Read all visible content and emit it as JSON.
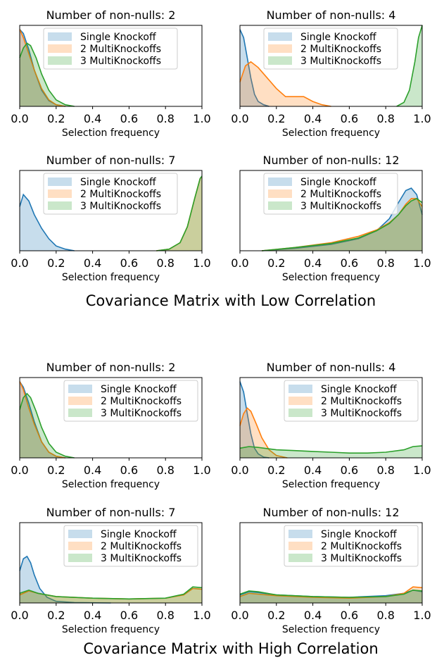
{
  "colors": {
    "single": "#1f77b4",
    "two": "#ff7f0e",
    "three": "#2ca02c"
  },
  "sections": [
    {
      "caption": "Covariance Matrix with Low Correlation"
    },
    {
      "caption": "Covariance Matrix with High Correlation"
    }
  ],
  "chart_data": [
    {
      "type": "area",
      "title": "Number of non-nulls: 2",
      "xlabel": "Selection frequency",
      "ylabel": "",
      "xlim": [
        0,
        1
      ],
      "x_ticks": [
        "0.0",
        "0.2",
        "0.4",
        "0.6",
        "0.8",
        "1.0"
      ],
      "legend": "upper-middle",
      "series": [
        {
          "name": "Single Knockoff",
          "x": [
            0,
            0.02,
            0.05,
            0.08,
            0.12,
            0.16,
            0.2,
            0.25
          ],
          "y": [
            0.95,
            0.9,
            0.7,
            0.45,
            0.2,
            0.07,
            0.02,
            0
          ]
        },
        {
          "name": "2 MultiKnockoffs",
          "x": [
            0,
            0.02,
            0.05,
            0.08,
            0.12,
            0.16,
            0.2,
            0.25
          ],
          "y": [
            0.95,
            0.85,
            0.65,
            0.45,
            0.22,
            0.08,
            0.02,
            0
          ]
        },
        {
          "name": "3 MultiKnockoffs",
          "x": [
            0,
            0.02,
            0.04,
            0.06,
            0.09,
            0.12,
            0.16,
            0.2,
            0.25,
            0.3
          ],
          "y": [
            0.6,
            0.72,
            0.78,
            0.75,
            0.6,
            0.4,
            0.2,
            0.08,
            0.02,
            0
          ]
        }
      ]
    },
    {
      "type": "area",
      "title": "Number of non-nulls: 4",
      "xlabel": "Selection frequency",
      "ylabel": "",
      "xlim": [
        0,
        1
      ],
      "x_ticks": [
        "0.0",
        "0.2",
        "0.4",
        "0.6",
        "0.8",
        "1.0"
      ],
      "legend": "upper-middle",
      "series": [
        {
          "name": "Single Knockoff",
          "x": [
            0,
            0.02,
            0.04,
            0.06,
            0.08,
            0.1,
            0.13,
            0.16
          ],
          "y": [
            0.95,
            0.85,
            0.6,
            0.35,
            0.15,
            0.06,
            0.02,
            0
          ]
        },
        {
          "name": "2 MultiKnockoffs",
          "x": [
            0,
            0.03,
            0.06,
            0.1,
            0.15,
            0.2,
            0.25,
            0.3,
            0.35,
            0.4,
            0.45,
            0.5
          ],
          "y": [
            0.3,
            0.5,
            0.55,
            0.48,
            0.35,
            0.22,
            0.12,
            0.12,
            0.12,
            0.06,
            0.02,
            0
          ]
        },
        {
          "name": "3 MultiKnockoffs",
          "x": [
            0.86,
            0.9,
            0.93,
            0.96,
            0.98,
            1.0
          ],
          "y": [
            0,
            0.05,
            0.2,
            0.55,
            0.85,
            1.0
          ]
        }
      ]
    },
    {
      "type": "area",
      "title": "Number of non-nulls: 7",
      "xlabel": "Selection frequency",
      "ylabel": "",
      "xlim": [
        0,
        1
      ],
      "x_ticks": [
        "0.0",
        "0.2",
        "0.4",
        "0.6",
        "0.8",
        "1.0"
      ],
      "legend": "upper-middle",
      "series": [
        {
          "name": "Single Knockoff",
          "x": [
            0,
            0.02,
            0.05,
            0.08,
            0.12,
            0.16,
            0.2,
            0.25,
            0.3
          ],
          "y": [
            0.55,
            0.7,
            0.62,
            0.45,
            0.28,
            0.15,
            0.06,
            0.02,
            0
          ]
        },
        {
          "name": "2 MultiKnockoffs",
          "x": [
            0.75,
            0.82,
            0.88,
            0.92,
            0.96,
            0.99,
            1.0
          ],
          "y": [
            0,
            0.02,
            0.1,
            0.3,
            0.65,
            0.9,
            0.92
          ]
        },
        {
          "name": "3 MultiKnockoffs",
          "x": [
            0.75,
            0.82,
            0.88,
            0.92,
            0.96,
            0.99,
            1.0
          ],
          "y": [
            0,
            0.02,
            0.1,
            0.3,
            0.65,
            0.9,
            0.93
          ]
        }
      ]
    },
    {
      "type": "area",
      "title": "Number of non-nulls: 12",
      "xlabel": "Selection frequency",
      "ylabel": "",
      "xlim": [
        0,
        1
      ],
      "x_ticks": [
        "0.0",
        "0.2",
        "0.4",
        "0.6",
        "0.8",
        "1.0"
      ],
      "legend": "upper-middle",
      "series": [
        {
          "name": "Single Knockoff",
          "x": [
            0.12,
            0.3,
            0.5,
            0.65,
            0.75,
            0.82,
            0.87,
            0.91,
            0.94,
            0.97,
            1.0
          ],
          "y": [
            0,
            0.03,
            0.08,
            0.15,
            0.25,
            0.4,
            0.6,
            0.75,
            0.78,
            0.7,
            0.45
          ]
        },
        {
          "name": "2 MultiKnockoffs",
          "x": [
            0.12,
            0.3,
            0.5,
            0.65,
            0.75,
            0.82,
            0.87,
            0.91,
            0.94,
            0.97,
            1.0
          ],
          "y": [
            0,
            0.04,
            0.1,
            0.18,
            0.26,
            0.35,
            0.45,
            0.58,
            0.65,
            0.65,
            0.55
          ]
        },
        {
          "name": "3 MultiKnockoffs",
          "x": [
            0.12,
            0.3,
            0.5,
            0.65,
            0.75,
            0.82,
            0.87,
            0.91,
            0.94,
            0.97,
            1.0
          ],
          "y": [
            0,
            0.04,
            0.09,
            0.16,
            0.25,
            0.34,
            0.45,
            0.56,
            0.62,
            0.65,
            0.6
          ]
        }
      ]
    },
    {
      "type": "area",
      "title": "Number of non-nulls: 2",
      "xlabel": "Selection frequency",
      "ylabel": "",
      "xlim": [
        0,
        1
      ],
      "x_ticks": [
        "0.0",
        "0.2",
        "0.4",
        "0.6",
        "0.8",
        "1.0"
      ],
      "legend": "upper-right",
      "series": [
        {
          "name": "Single Knockoff",
          "x": [
            0,
            0.02,
            0.05,
            0.08,
            0.12,
            0.16,
            0.2,
            0.25
          ],
          "y": [
            0.95,
            0.88,
            0.68,
            0.45,
            0.2,
            0.07,
            0.02,
            0
          ]
        },
        {
          "name": "2 MultiKnockoffs",
          "x": [
            0,
            0.02,
            0.05,
            0.08,
            0.12,
            0.16,
            0.2,
            0.25
          ],
          "y": [
            0.95,
            0.85,
            0.62,
            0.42,
            0.2,
            0.07,
            0.02,
            0
          ]
        },
        {
          "name": "3 MultiKnockoffs",
          "x": [
            0,
            0.02,
            0.04,
            0.06,
            0.09,
            0.12,
            0.16,
            0.2,
            0.25,
            0.3
          ],
          "y": [
            0.6,
            0.75,
            0.8,
            0.75,
            0.58,
            0.38,
            0.18,
            0.07,
            0.02,
            0
          ]
        }
      ]
    },
    {
      "type": "area",
      "title": "Number of non-nulls: 4",
      "xlabel": "Selection frequency",
      "ylabel": "",
      "xlim": [
        0,
        1
      ],
      "x_ticks": [
        "0.0",
        "0.2",
        "0.4",
        "0.6",
        "0.8",
        "1.0"
      ],
      "legend": "upper-right",
      "series": [
        {
          "name": "Single Knockoff",
          "x": [
            0,
            0.02,
            0.04,
            0.06,
            0.08,
            0.1,
            0.13,
            0.16
          ],
          "y": [
            0.95,
            0.82,
            0.55,
            0.3,
            0.12,
            0.05,
            0.01,
            0
          ]
        },
        {
          "name": "2 MultiKnockoffs",
          "x": [
            0,
            0.02,
            0.04,
            0.06,
            0.09,
            0.12,
            0.16,
            0.2,
            0.26
          ],
          "y": [
            0.4,
            0.55,
            0.62,
            0.58,
            0.42,
            0.25,
            0.1,
            0.03,
            0
          ]
        },
        {
          "name": "3 MultiKnockoffs",
          "x": [
            0,
            0.05,
            0.1,
            0.2,
            0.3,
            0.4,
            0.5,
            0.6,
            0.7,
            0.8,
            0.9,
            0.95,
            1.0
          ],
          "y": [
            0.12,
            0.14,
            0.13,
            0.1,
            0.09,
            0.08,
            0.07,
            0.06,
            0.06,
            0.07,
            0.1,
            0.14,
            0.15
          ]
        }
      ]
    },
    {
      "type": "area",
      "title": "Number of non-nulls: 7",
      "xlabel": "Selection frequency",
      "ylabel": "",
      "xlim": [
        0,
        1
      ],
      "x_ticks": [
        "0.0",
        "0.2",
        "0.4",
        "0.6",
        "0.8",
        "1.0"
      ],
      "legend": "upper-right",
      "series": [
        {
          "name": "Single Knockoff",
          "x": [
            0,
            0.02,
            0.04,
            0.06,
            0.08,
            0.11,
            0.15,
            0.2,
            0.3,
            0.5
          ],
          "y": [
            0.4,
            0.55,
            0.58,
            0.5,
            0.35,
            0.18,
            0.07,
            0.02,
            0.005,
            0
          ]
        },
        {
          "name": "2 MultiKnockoffs",
          "x": [
            0,
            0.05,
            0.1,
            0.2,
            0.4,
            0.6,
            0.8,
            0.9,
            0.95,
            1.0
          ],
          "y": [
            0.1,
            0.15,
            0.12,
            0.08,
            0.06,
            0.05,
            0.06,
            0.1,
            0.18,
            0.17
          ]
        },
        {
          "name": "3 MultiKnockoffs",
          "x": [
            0,
            0.05,
            0.1,
            0.2,
            0.4,
            0.6,
            0.8,
            0.9,
            0.95,
            1.0
          ],
          "y": [
            0.12,
            0.16,
            0.12,
            0.08,
            0.06,
            0.05,
            0.06,
            0.11,
            0.2,
            0.19
          ]
        }
      ]
    },
    {
      "type": "area",
      "title": "Number of non-nulls: 12",
      "xlabel": "Selection frequency",
      "ylabel": "",
      "xlim": [
        0,
        1
      ],
      "x_ticks": [
        "0.0",
        "0.2",
        "0.4",
        "0.6",
        "0.8",
        "1.0"
      ],
      "legend": "upper-right",
      "series": [
        {
          "name": "Single Knockoff",
          "x": [
            0,
            0.05,
            0.1,
            0.2,
            0.4,
            0.6,
            0.8,
            0.9,
            0.95,
            1.0
          ],
          "y": [
            0.1,
            0.14,
            0.13,
            0.1,
            0.08,
            0.07,
            0.09,
            0.12,
            0.16,
            0.14
          ]
        },
        {
          "name": "2 MultiKnockoffs",
          "x": [
            0,
            0.05,
            0.1,
            0.2,
            0.4,
            0.6,
            0.8,
            0.9,
            0.95,
            1.0
          ],
          "y": [
            0.08,
            0.12,
            0.11,
            0.09,
            0.07,
            0.06,
            0.08,
            0.12,
            0.2,
            0.19
          ]
        },
        {
          "name": "3 MultiKnockoffs",
          "x": [
            0,
            0.05,
            0.1,
            0.2,
            0.4,
            0.6,
            0.8,
            0.9,
            0.95,
            1.0
          ],
          "y": [
            0.11,
            0.15,
            0.14,
            0.1,
            0.08,
            0.07,
            0.08,
            0.11,
            0.16,
            0.15
          ]
        }
      ]
    }
  ]
}
